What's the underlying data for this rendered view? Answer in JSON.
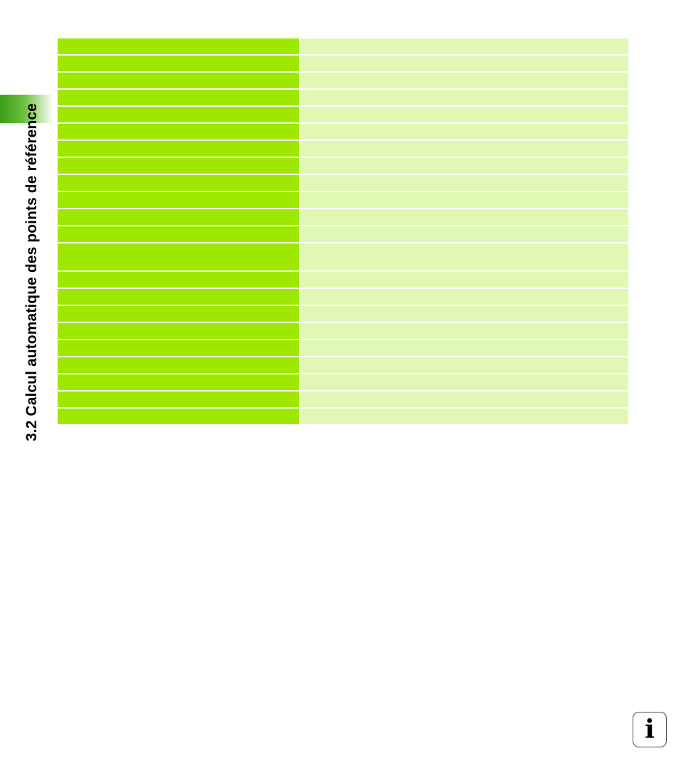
{
  "section": {
    "title": "3.2 Calcul automatique des points de référence"
  },
  "table": {
    "rows": [
      {
        "key": "",
        "value": ""
      },
      {
        "key": "",
        "value": ""
      },
      {
        "key": "",
        "value": ""
      },
      {
        "key": "",
        "value": ""
      },
      {
        "key": "",
        "value": ""
      },
      {
        "key": "",
        "value": ""
      },
      {
        "key": "",
        "value": ""
      },
      {
        "key": "",
        "value": ""
      },
      {
        "key": "",
        "value": ""
      },
      {
        "key": "",
        "value": ""
      },
      {
        "key": "",
        "value": ""
      },
      {
        "key": "",
        "value": ""
      },
      {
        "key": "",
        "value": ""
      },
      {
        "key": "",
        "value": ""
      },
      {
        "key": "",
        "value": ""
      },
      {
        "key": "",
        "value": ""
      },
      {
        "key": "",
        "value": ""
      },
      {
        "key": "",
        "value": ""
      },
      {
        "key": "",
        "value": ""
      },
      {
        "key": "",
        "value": ""
      },
      {
        "key": "",
        "value": ""
      },
      {
        "key": "",
        "value": ""
      }
    ]
  },
  "info_button": {
    "glyph": "i",
    "icon": "info-icon"
  },
  "colors": {
    "key_cell": "#9ee800",
    "value_cell": "#e0f8b3",
    "tab_green": "#3b9e1a"
  }
}
